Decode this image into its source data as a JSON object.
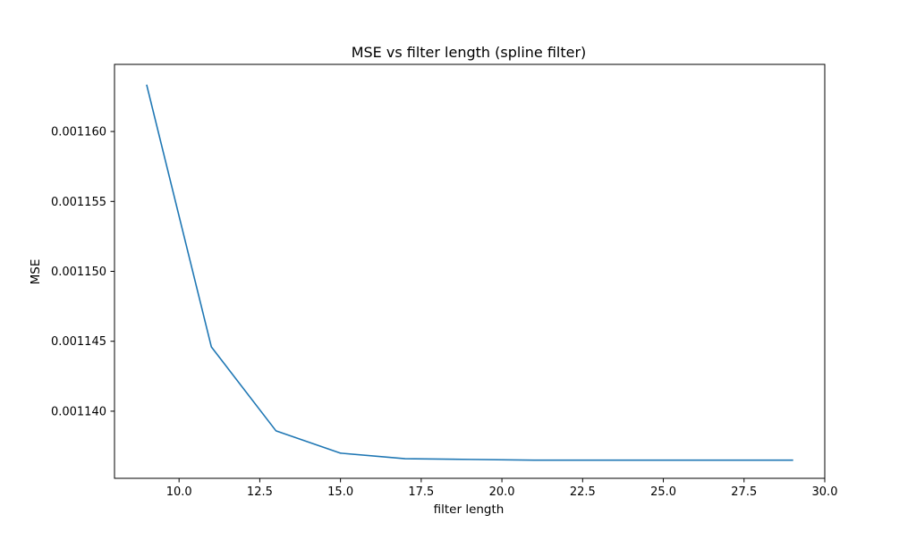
{
  "chart_data": {
    "type": "line",
    "title": "MSE vs filter length (spline filter)",
    "xlabel": "filter length",
    "ylabel": "MSE",
    "xlim": [
      8.0,
      30.0
    ],
    "ylim": [
      0.0011352,
      0.0011648
    ],
    "grid": false,
    "xticks": [
      10.0,
      12.5,
      15.0,
      17.5,
      20.0,
      22.5,
      25.0,
      27.5,
      30.0
    ],
    "xtick_labels": [
      "10.0",
      "12.5",
      "15.0",
      "17.5",
      "20.0",
      "22.5",
      "25.0",
      "27.5",
      "30.0"
    ],
    "yticks": [
      0.00114,
      0.001145,
      0.00115,
      0.001155,
      0.00116
    ],
    "ytick_labels": [
      "0.001140",
      "0.001145",
      "0.001150",
      "0.001155",
      "0.001160"
    ],
    "series": [
      {
        "color": "#1f77b4",
        "x": [
          9,
          11,
          13,
          15,
          17,
          19,
          21,
          23,
          25,
          27,
          29
        ],
        "y": [
          0.0011633,
          0.0011446,
          0.0011386,
          0.001137,
          0.0011366,
          0.00113655,
          0.0011365,
          0.0011365,
          0.0011365,
          0.0011365,
          0.0011365
        ]
      }
    ]
  }
}
